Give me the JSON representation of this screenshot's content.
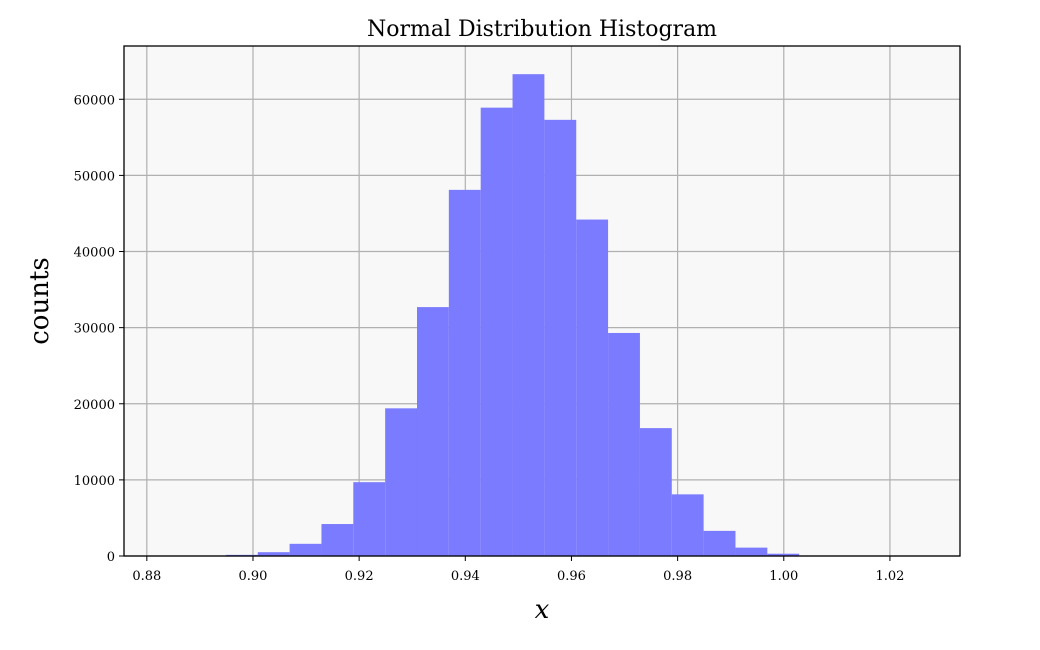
{
  "chart_data": {
    "type": "bar",
    "title": "Normal Distribution Histogram",
    "xlabel": "x",
    "ylabel": "counts",
    "xlim": [
      0.8757,
      1.0332
    ],
    "ylim": [
      0,
      67000
    ],
    "grid": true,
    "xticks": [
      0.88,
      0.9,
      0.92,
      0.94,
      0.96,
      0.98,
      1.0,
      1.02
    ],
    "xtick_labels": [
      "0.88",
      "0.90",
      "0.92",
      "0.94",
      "0.96",
      "0.98",
      "1.00",
      "1.02"
    ],
    "yticks": [
      0,
      10000,
      20000,
      30000,
      40000,
      50000,
      60000
    ],
    "ytick_labels": [
      "0",
      "10000",
      "20000",
      "30000",
      "40000",
      "50000",
      "60000"
    ],
    "bin_edges": [
      0.8829,
      0.8889,
      0.8949,
      0.9009,
      0.9069,
      0.9129,
      0.9189,
      0.9249,
      0.9309,
      0.9369,
      0.9429,
      0.9489,
      0.9549,
      0.9609,
      0.9669,
      0.9729,
      0.9789,
      0.9849,
      0.9909,
      0.9969,
      1.0029,
      1.0089,
      1.0149,
      1.0209,
      1.0269,
      1.0329
    ],
    "counts": [
      10,
      40,
      150,
      500,
      1600,
      4200,
      9700,
      19400,
      32700,
      48100,
      58900,
      63300,
      57300,
      44200,
      29300,
      16800,
      8100,
      3300,
      1100,
      300,
      60,
      15,
      5,
      2,
      1
    ],
    "bar_color": "#7b7bff",
    "background_color": "#f8f8f8"
  }
}
